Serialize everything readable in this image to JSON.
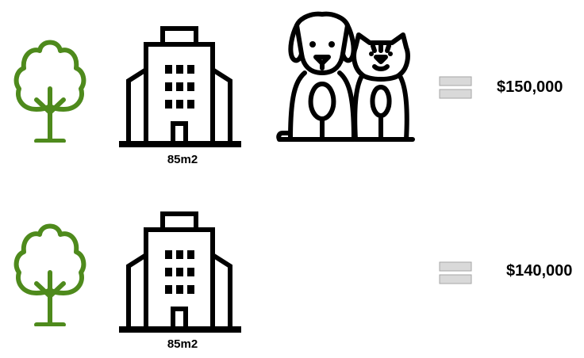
{
  "rows": [
    {
      "area": "85m2",
      "price": "$150,000",
      "has_pets": true
    },
    {
      "area": "85m2",
      "price": "$140,000",
      "has_pets": false
    }
  ],
  "colors": {
    "tree": "#4e8a1c",
    "equals": "#d9d9d9",
    "equals_border": "#a6a6a6",
    "ink": "#000000"
  },
  "icons": [
    "tree-icon",
    "building-icon",
    "dog-icon",
    "cat-icon",
    "equals-icon"
  ]
}
